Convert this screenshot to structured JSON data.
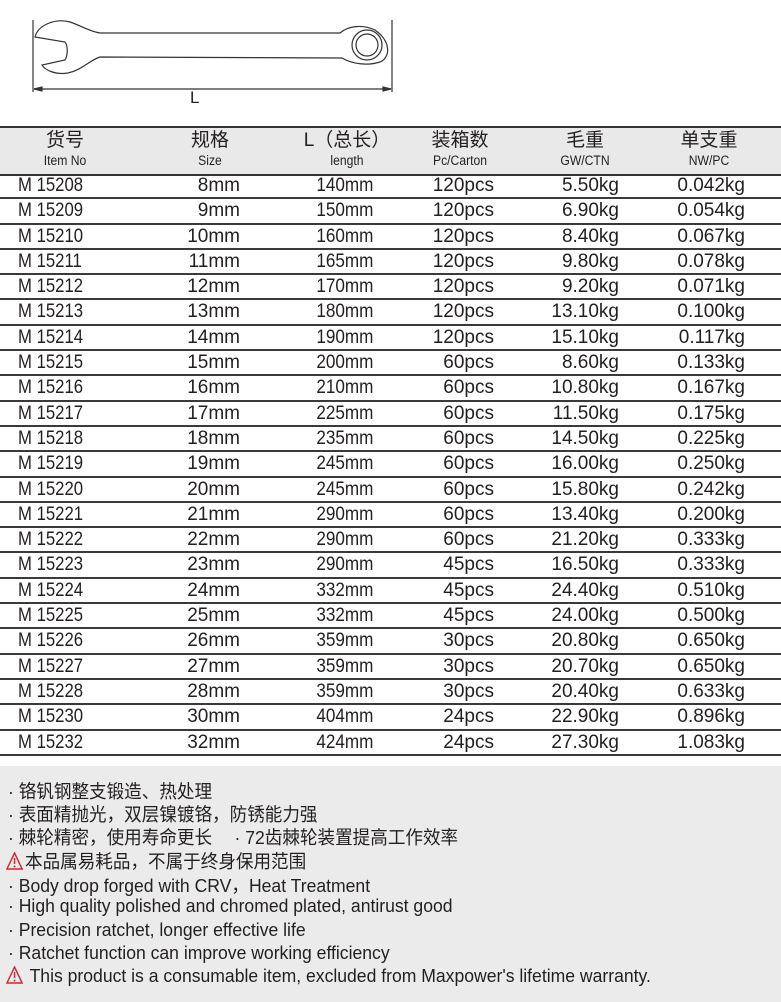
{
  "drawing": {
    "dimension_label": "L"
  },
  "table": {
    "headers": [
      {
        "cn": "货号",
        "en": "Item No"
      },
      {
        "cn": "规格",
        "en": "Size"
      },
      {
        "cn": "L（总长）",
        "en": "length"
      },
      {
        "cn": "装箱数",
        "en": "Pc/Carton"
      },
      {
        "cn": "毛重",
        "en": "GW/CTN"
      },
      {
        "cn": "单支重",
        "en": "NW/PC"
      }
    ],
    "rows": [
      [
        "M 15208",
        "8mm",
        "140mm",
        "120pcs",
        "5.50kg",
        "0.042kg"
      ],
      [
        "M 15209",
        "9mm",
        "150mm",
        "120pcs",
        "6.90kg",
        "0.054kg"
      ],
      [
        "M 15210",
        "10mm",
        "160mm",
        "120pcs",
        "8.40kg",
        "0.067kg"
      ],
      [
        "M 15211",
        "11mm",
        "165mm",
        "120pcs",
        "9.80kg",
        "0.078kg"
      ],
      [
        "M 15212",
        "12mm",
        "170mm",
        "120pcs",
        "9.20kg",
        "0.071kg"
      ],
      [
        "M 15213",
        "13mm",
        "180mm",
        "120pcs",
        "13.10kg",
        "0.100kg"
      ],
      [
        "M 15214",
        "14mm",
        "190mm",
        "120pcs",
        "15.10kg",
        "0.117kg"
      ],
      [
        "M 15215",
        "15mm",
        "200mm",
        "60pcs",
        "8.60kg",
        "0.133kg"
      ],
      [
        "M 15216",
        "16mm",
        "210mm",
        "60pcs",
        "10.80kg",
        "0.167kg"
      ],
      [
        "M 15217",
        "17mm",
        "225mm",
        "60pcs",
        "11.50kg",
        "0.175kg"
      ],
      [
        "M 15218",
        "18mm",
        "235mm",
        "60pcs",
        "14.50kg",
        "0.225kg"
      ],
      [
        "M 15219",
        "19mm",
        "245mm",
        "60pcs",
        "16.00kg",
        "0.250kg"
      ],
      [
        "M 15220",
        "20mm",
        "245mm",
        "60pcs",
        "15.80kg",
        "0.242kg"
      ],
      [
        "M 15221",
        "21mm",
        "290mm",
        "60pcs",
        "13.40kg",
        "0.200kg"
      ],
      [
        "M 15222",
        "22mm",
        "290mm",
        "60pcs",
        "21.20kg",
        "0.333kg"
      ],
      [
        "M 15223",
        "23mm",
        "290mm",
        "45pcs",
        "16.50kg",
        "0.333kg"
      ],
      [
        "M 15224",
        "24mm",
        "332mm",
        "45pcs",
        "24.40kg",
        "0.510kg"
      ],
      [
        "M 15225",
        "25mm",
        "332mm",
        "45pcs",
        "24.00kg",
        "0.500kg"
      ],
      [
        "M 15226",
        "26mm",
        "359mm",
        "30pcs",
        "20.80kg",
        "0.650kg"
      ],
      [
        "M 15227",
        "27mm",
        "359mm",
        "30pcs",
        "20.70kg",
        "0.650kg"
      ],
      [
        "M 15228",
        "28mm",
        "359mm",
        "30pcs",
        "20.40kg",
        "0.633kg"
      ],
      [
        "M 15230",
        "30mm",
        "404mm",
        "24pcs",
        "22.90kg",
        "0.896kg"
      ],
      [
        "M 15232",
        "32mm",
        "424mm",
        "24pcs",
        "27.30kg",
        "1.083kg"
      ]
    ]
  },
  "notes": [
    {
      "text": "· 铬钒钢整支锻造、热处理",
      "warning": false
    },
    {
      "text": "· 表面精抛光，双层镍镀铬，防锈能力强",
      "warning": false
    },
    {
      "text": "· 棘轮精密，使用寿命更长　  · 72齿棘轮装置提高工作效率",
      "warning": false
    },
    {
      "text": "本品属易耗品，不属于终身保用范围",
      "warning": true
    },
    {
      "text": "· Body drop forged with CRV，Heat Treatment",
      "warning": false
    },
    {
      "text": "· High quality polished and chromed plated, antirust good",
      "warning": false
    },
    {
      "text": "· Precision ratchet, longer effective life",
      "warning": false
    },
    {
      "text": "· Ratchet function can improve working efficiency",
      "warning": false
    },
    {
      "text": " This product is a consumable item, excluded from Maxpower's lifetime warranty.",
      "warning": true
    }
  ],
  "colors": {
    "warning": "#d7262c",
    "header_bg": "#e9e9e9",
    "notes_bg": "#ebebeb"
  }
}
